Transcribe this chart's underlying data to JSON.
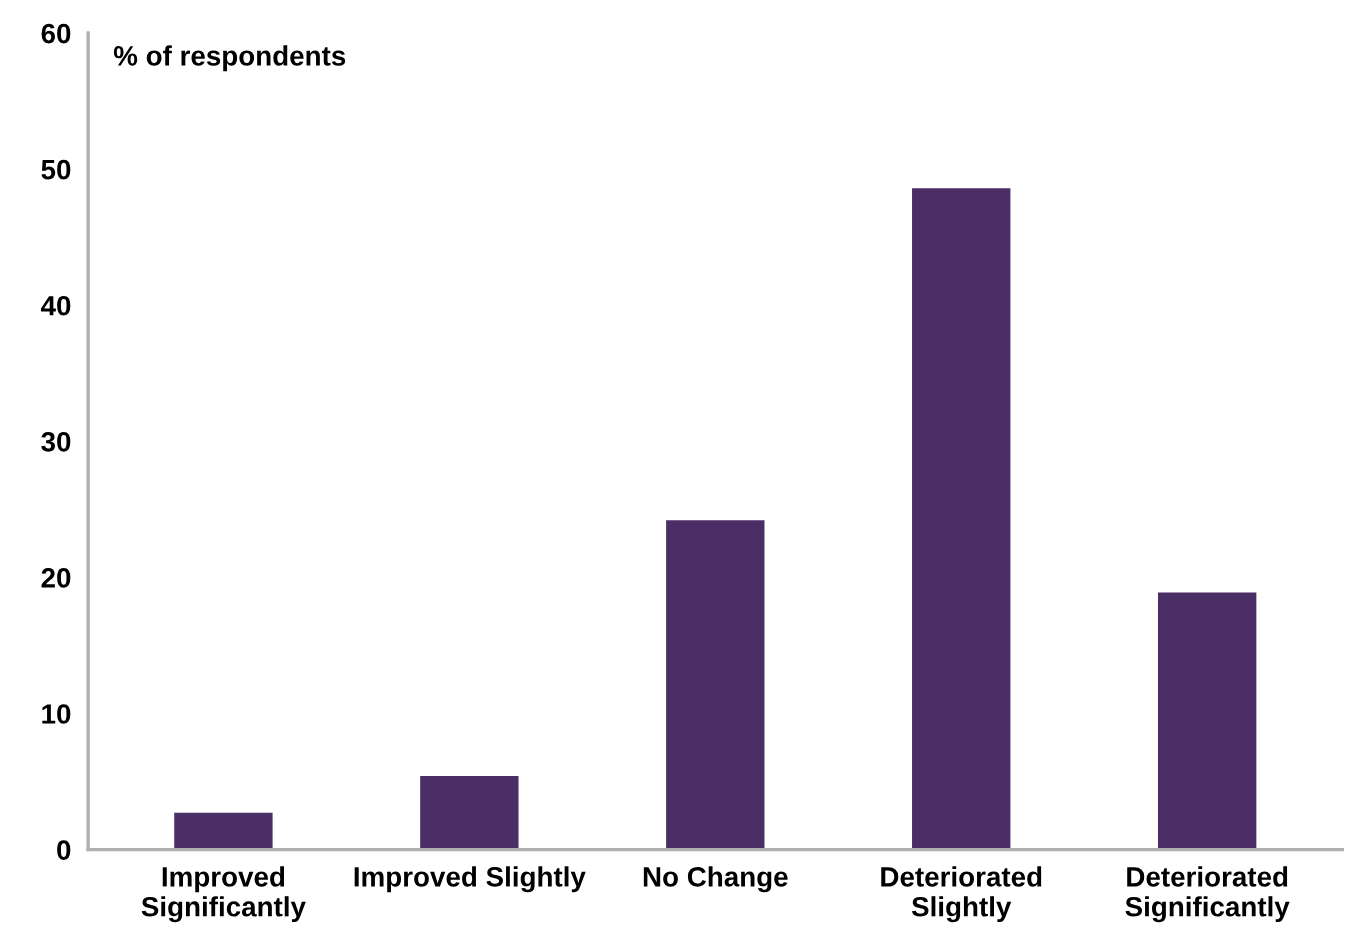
{
  "chart_data": {
    "type": "bar",
    "ylabel": "% of respondents",
    "categories": [
      "Improved\nSignificantly",
      "Improved Slightly",
      "No Change",
      "Deteriorated\nSlightly",
      "Deteriorated\nSignificantly"
    ],
    "values": [
      2.7,
      5.4,
      24.2,
      48.6,
      18.9
    ],
    "color": "#4b2e66",
    "ylim": [
      0,
      60
    ],
    "yticks": [
      0,
      10,
      20,
      30,
      40,
      50,
      60
    ],
    "grid": false,
    "legend": false
  }
}
